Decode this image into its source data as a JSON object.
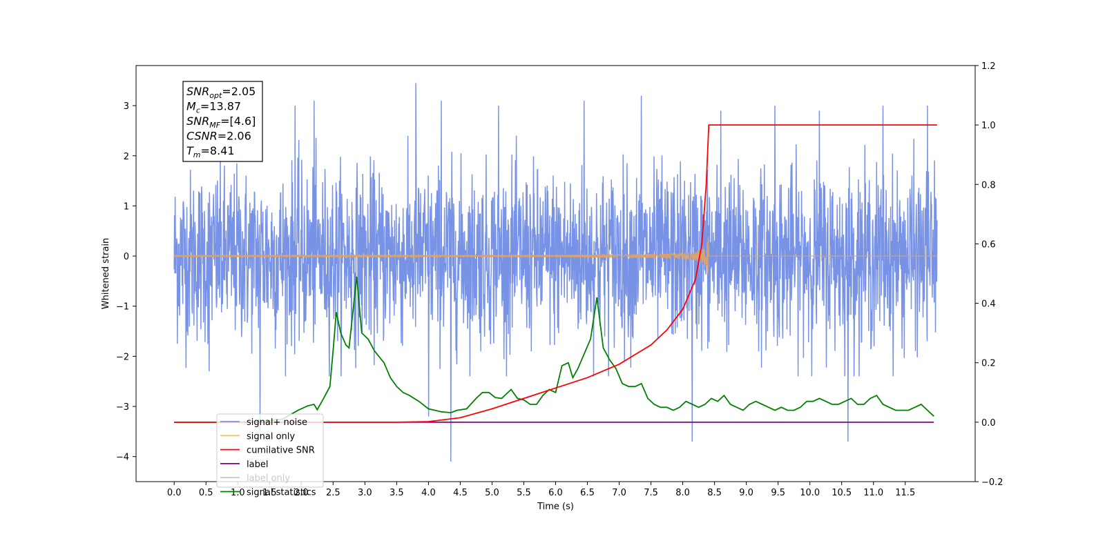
{
  "chart_data": {
    "type": "line",
    "title": "",
    "xlabel": "Time (s)",
    "ylabel": "Whitened strain",
    "y2label": "",
    "xlim": [
      -0.6,
      12.6
    ],
    "ylim": [
      -4.5,
      3.8
    ],
    "y2lim": [
      -0.2,
      1.2
    ],
    "grid": false,
    "xticks": [
      "0.0",
      "0.5",
      "1.0",
      "1.5",
      "2.0",
      "2.5",
      "3.0",
      "3.5",
      "4.0",
      "4.5",
      "5.0",
      "5.5",
      "6.0",
      "6.5",
      "7.0",
      "7.5",
      "8.0",
      "8.5",
      "9.0",
      "9.5",
      "10.0",
      "10.5",
      "11.0",
      "11.5"
    ],
    "yticks": [
      "3",
      "2",
      "1",
      "0",
      "−1",
      "−2",
      "−3",
      "−4"
    ],
    "y2ticks": [
      "1.2",
      "1.0",
      "0.8",
      "0.6",
      "0.4",
      "0.2",
      "0.0",
      "−0.2"
    ],
    "annotation": {
      "lines": [
        {
          "base": "SNR",
          "sub": "opt",
          "value": "=2.05"
        },
        {
          "base": "M",
          "sub": "c",
          "value": "=13.87"
        },
        {
          "base": "SNR",
          "sub": "MF",
          "value": "=[4.6]"
        },
        {
          "base": "CSNR",
          "sub": "",
          "value": "=2.06"
        },
        {
          "base": "T",
          "sub": "m",
          "value": "=8.41"
        }
      ]
    },
    "legend": {
      "position": "lower-left",
      "entries": [
        {
          "label": "signal+ noise",
          "color": "#7893e6"
        },
        {
          "label": "signal only",
          "color": "#f5c26b"
        },
        {
          "label": "cumilative SNR",
          "color": "#ff0000"
        },
        {
          "label": "label",
          "color": "#800080"
        },
        {
          "label": "label only",
          "color": "#c9c9c9"
        },
        {
          "label": "signal statistics",
          "color": "#008000"
        }
      ]
    },
    "series": [
      {
        "name": "signal+ noise",
        "axis": "left",
        "color": "#7893e6",
        "x_range": [
          0.0,
          12.0
        ],
        "y_envelope": [
          -2.8,
          3.4
        ],
        "spikes": [
          {
            "x": 0.55,
            "y": -2.3
          },
          {
            "x": 1.35,
            "y": -3.5
          },
          {
            "x": 1.9,
            "y": 3.0
          },
          {
            "x": 2.2,
            "y": 3.1
          },
          {
            "x": 3.8,
            "y": 3.45
          },
          {
            "x": 4.0,
            "y": -3.2
          },
          {
            "x": 4.35,
            "y": -4.1
          },
          {
            "x": 4.2,
            "y": 3.1
          },
          {
            "x": 5.1,
            "y": 3.0
          },
          {
            "x": 6.45,
            "y": 3.1
          },
          {
            "x": 7.35,
            "y": 3.2
          },
          {
            "x": 8.15,
            "y": -3.7
          },
          {
            "x": 8.6,
            "y": 2.9
          },
          {
            "x": 9.45,
            "y": 3.0
          },
          {
            "x": 10.15,
            "y": 2.9
          },
          {
            "x": 10.6,
            "y": -3.7
          },
          {
            "x": 11.15,
            "y": 3.0
          },
          {
            "x": 11.85,
            "y": 3.0
          }
        ]
      },
      {
        "name": "signal only",
        "axis": "left",
        "color": "#f5c26b",
        "x_range": [
          0.0,
          12.0
        ],
        "merger_time": 8.41,
        "peak_amplitude": 0.4
      },
      {
        "name": "cumilative SNR",
        "axis": "right",
        "color": "#ff0000",
        "points": [
          [
            0.0,
            0.0
          ],
          [
            3.5,
            0.0
          ],
          [
            4.0,
            0.002
          ],
          [
            4.5,
            0.015
          ],
          [
            5.0,
            0.045
          ],
          [
            5.5,
            0.08
          ],
          [
            6.0,
            0.115
          ],
          [
            6.5,
            0.15
          ],
          [
            7.0,
            0.195
          ],
          [
            7.5,
            0.26
          ],
          [
            7.75,
            0.31
          ],
          [
            8.0,
            0.38
          ],
          [
            8.2,
            0.48
          ],
          [
            8.3,
            0.6
          ],
          [
            8.37,
            0.8
          ],
          [
            8.41,
            1.0
          ],
          [
            12.0,
            1.0
          ]
        ]
      },
      {
        "name": "label",
        "axis": "right",
        "color": "#800080",
        "points": [
          [
            0.0,
            0.0
          ],
          [
            11.95,
            0.0
          ]
        ]
      },
      {
        "name": "signal statistics",
        "axis": "right",
        "color": "#008000",
        "points": [
          [
            0.0,
            0.0
          ],
          [
            0.5,
            0.0
          ],
          [
            1.0,
            0.0
          ],
          [
            1.4,
            0.003
          ],
          [
            1.7,
            0.01
          ],
          [
            1.95,
            0.04
          ],
          [
            2.1,
            0.055
          ],
          [
            2.2,
            0.06
          ],
          [
            2.25,
            0.042
          ],
          [
            2.35,
            0.08
          ],
          [
            2.45,
            0.12
          ],
          [
            2.5,
            0.24
          ],
          [
            2.55,
            0.37
          ],
          [
            2.62,
            0.3
          ],
          [
            2.7,
            0.26
          ],
          [
            2.75,
            0.25
          ],
          [
            2.8,
            0.35
          ],
          [
            2.87,
            0.49
          ],
          [
            2.95,
            0.3
          ],
          [
            3.05,
            0.28
          ],
          [
            3.15,
            0.24
          ],
          [
            3.3,
            0.2
          ],
          [
            3.4,
            0.15
          ],
          [
            3.5,
            0.12
          ],
          [
            3.6,
            0.1
          ],
          [
            3.7,
            0.09
          ],
          [
            3.85,
            0.07
          ],
          [
            4.0,
            0.045
          ],
          [
            4.1,
            0.04
          ],
          [
            4.2,
            0.035
          ],
          [
            4.3,
            0.033
          ],
          [
            4.35,
            0.032
          ],
          [
            4.45,
            0.04
          ],
          [
            4.6,
            0.045
          ],
          [
            4.75,
            0.08
          ],
          [
            4.85,
            0.1
          ],
          [
            4.95,
            0.1
          ],
          [
            5.05,
            0.083
          ],
          [
            5.15,
            0.08
          ],
          [
            5.3,
            0.11
          ],
          [
            5.4,
            0.08
          ],
          [
            5.5,
            0.075
          ],
          [
            5.6,
            0.06
          ],
          [
            5.7,
            0.06
          ],
          [
            5.8,
            0.09
          ],
          [
            5.9,
            0.11
          ],
          [
            6.0,
            0.1
          ],
          [
            6.1,
            0.19
          ],
          [
            6.2,
            0.2
          ],
          [
            6.27,
            0.15
          ],
          [
            6.35,
            0.18
          ],
          [
            6.45,
            0.23
          ],
          [
            6.55,
            0.28
          ],
          [
            6.65,
            0.42
          ],
          [
            6.75,
            0.25
          ],
          [
            6.85,
            0.21
          ],
          [
            6.95,
            0.18
          ],
          [
            7.05,
            0.13
          ],
          [
            7.15,
            0.12
          ],
          [
            7.25,
            0.12
          ],
          [
            7.35,
            0.13
          ],
          [
            7.45,
            0.08
          ],
          [
            7.55,
            0.06
          ],
          [
            7.65,
            0.05
          ],
          [
            7.75,
            0.05
          ],
          [
            7.85,
            0.04
          ],
          [
            7.95,
            0.05
          ],
          [
            8.05,
            0.07
          ],
          [
            8.15,
            0.06
          ],
          [
            8.25,
            0.05
          ],
          [
            8.35,
            0.06
          ],
          [
            8.45,
            0.08
          ],
          [
            8.55,
            0.07
          ],
          [
            8.65,
            0.09
          ],
          [
            8.75,
            0.06
          ],
          [
            8.85,
            0.05
          ],
          [
            8.95,
            0.04
          ],
          [
            9.05,
            0.06
          ],
          [
            9.15,
            0.07
          ],
          [
            9.25,
            0.06
          ],
          [
            9.35,
            0.05
          ],
          [
            9.45,
            0.04
          ],
          [
            9.55,
            0.05
          ],
          [
            9.65,
            0.04
          ],
          [
            9.75,
            0.04
          ],
          [
            9.85,
            0.05
          ],
          [
            9.95,
            0.07
          ],
          [
            10.05,
            0.07
          ],
          [
            10.15,
            0.08
          ],
          [
            10.25,
            0.07
          ],
          [
            10.35,
            0.06
          ],
          [
            10.45,
            0.06
          ],
          [
            10.55,
            0.07
          ],
          [
            10.65,
            0.08
          ],
          [
            10.75,
            0.06
          ],
          [
            10.85,
            0.06
          ],
          [
            10.95,
            0.08
          ],
          [
            11.05,
            0.09
          ],
          [
            11.15,
            0.06
          ],
          [
            11.25,
            0.05
          ],
          [
            11.35,
            0.04
          ],
          [
            11.45,
            0.04
          ],
          [
            11.55,
            0.04
          ],
          [
            11.65,
            0.05
          ],
          [
            11.75,
            0.06
          ],
          [
            11.85,
            0.04
          ],
          [
            11.95,
            0.02
          ]
        ]
      }
    ]
  }
}
